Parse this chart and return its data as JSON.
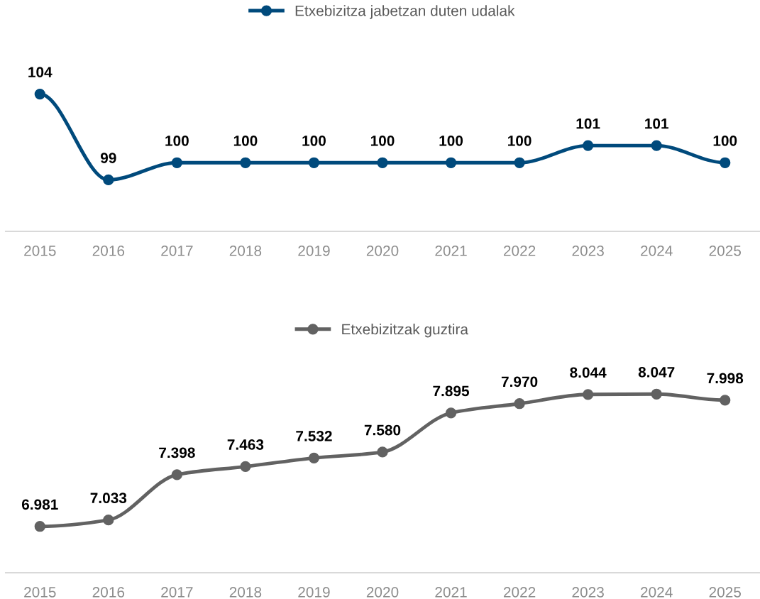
{
  "chart_data": [
    {
      "type": "line",
      "categories": [
        "2015",
        "2016",
        "2017",
        "2018",
        "2019",
        "2020",
        "2021",
        "2022",
        "2023",
        "2024",
        "2025"
      ],
      "series": [
        {
          "name": "Etxebizitza jabetzan duten udalak",
          "color": "#004a7c",
          "values": [
            104,
            99,
            100,
            100,
            100,
            100,
            100,
            100,
            101,
            101,
            100
          ],
          "value_labels": [
            "104",
            "99",
            "100",
            "100",
            "100",
            "100",
            "100",
            "100",
            "101",
            "101",
            "100"
          ]
        }
      ],
      "tick_labels": "x",
      "legend": "top",
      "marker": "circle",
      "line_style": "solid",
      "grid": false
    },
    {
      "type": "line",
      "categories": [
        "2015",
        "2016",
        "2017",
        "2018",
        "2019",
        "2020",
        "2021",
        "2022",
        "2023",
        "2024",
        "2025"
      ],
      "series": [
        {
          "name": "Etxebizitzak guztira",
          "color": "#626262",
          "values": [
            6981,
            7033,
            7398,
            7463,
            7532,
            7580,
            7895,
            7970,
            8044,
            8047,
            7998
          ],
          "value_labels": [
            "6.981",
            "7.033",
            "7.398",
            "7.463",
            "7.532",
            "7.580",
            "7.895",
            "7.970",
            "8.044",
            "8.047",
            "7.998"
          ]
        }
      ],
      "tick_labels": "x",
      "legend": "top",
      "marker": "circle",
      "line_style": "solid",
      "grid": false
    }
  ]
}
